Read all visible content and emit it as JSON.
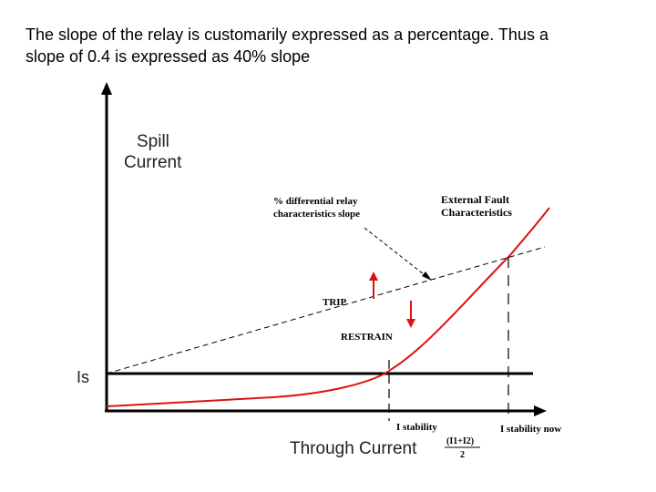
{
  "caption": {
    "line1": "The slope of the relay is customarily expressed as a percentage. Thus a",
    "line2": "slope of 0.4 is expressed as 40% slope"
  },
  "diagram": {
    "y_axis_label_1": "Spill",
    "y_axis_label_2": "Current",
    "x_axis_label": "Through Current",
    "is_label": "Is",
    "slope_note_1": "% differential relay",
    "slope_note_2": "characteristics slope",
    "fault_note_1": "External Fault",
    "fault_note_2": "Characteristics",
    "trip_label": "TRIP",
    "restrain_label": "RESTRAIN",
    "i_stability": "I stability",
    "i_stability_now": "I stability now",
    "fraction_numerator": "(I1+I2)",
    "fraction_denominator": "2",
    "colors": {
      "axis": "#000000",
      "fault_curve": "#dd1111",
      "arrow": "#dd1111"
    }
  }
}
